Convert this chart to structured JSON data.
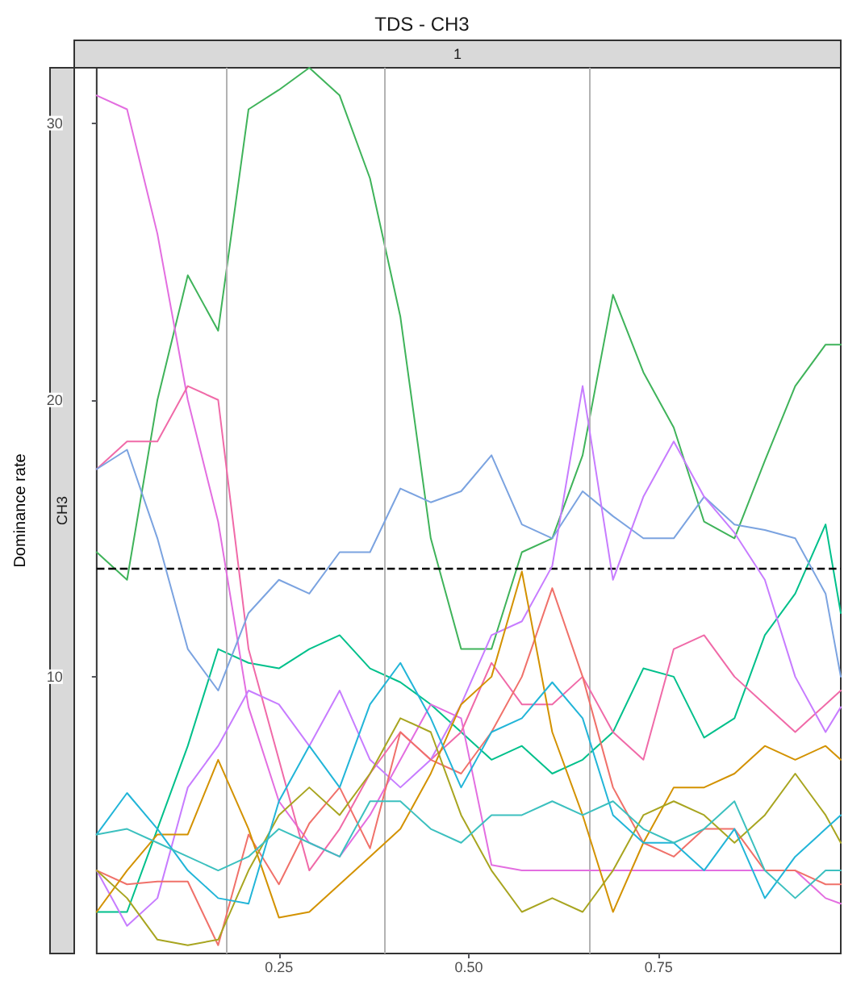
{
  "chart_data": {
    "type": "line",
    "title": "TDS - CH3",
    "ylabel": "Dominance rate",
    "annotations": [
      "1",
      "CH3"
    ],
    "x": [
      0.01,
      0.05,
      0.09,
      0.13,
      0.17,
      0.21,
      0.25,
      0.29,
      0.33,
      0.37,
      0.41,
      0.45,
      0.49,
      0.53,
      0.57,
      0.61,
      0.65,
      0.69,
      0.73,
      0.77,
      0.81,
      0.85,
      0.89,
      0.93,
      0.97,
      0.99
    ],
    "series": [
      {
        "color": "#3fb35a",
        "values": [
          14.5,
          13.5,
          20,
          24.5,
          22.5,
          30.5,
          31.2,
          32,
          31,
          28,
          23,
          15,
          11,
          11,
          14.5,
          15,
          18,
          23.8,
          21,
          19,
          15.6,
          15,
          17.8,
          20.5,
          22,
          22
        ]
      },
      {
        "color": "#00c08b",
        "values": [
          1.5,
          1.5,
          4.5,
          7.5,
          11,
          10.5,
          10.3,
          11,
          11.5,
          10.3,
          9.8,
          9,
          8,
          7,
          7.5,
          6.5,
          7,
          8,
          10.3,
          10,
          7.8,
          8.5,
          11.5,
          13,
          15.5,
          12.3
        ]
      },
      {
        "color": "#e36ee0",
        "values": [
          31,
          30.5,
          26,
          20,
          15.6,
          8.9,
          5.5,
          4,
          3.5,
          5,
          7,
          9,
          8.5,
          3.2,
          3,
          3,
          3,
          3,
          3,
          3,
          3,
          3,
          3,
          3,
          2,
          1.8
        ]
      },
      {
        "color": "#f06aa8",
        "values": [
          17.5,
          18.5,
          18.5,
          20.5,
          20,
          11,
          7,
          3,
          4.5,
          6.5,
          8,
          7,
          8,
          10.5,
          9,
          9,
          10,
          8,
          7,
          11,
          11.5,
          10,
          9,
          8,
          9,
          9.5
        ]
      },
      {
        "color": "#7ba3e0",
        "values": [
          17.5,
          18.2,
          15,
          11,
          9.5,
          12.3,
          13.5,
          13,
          14.5,
          14.5,
          16.8,
          16.3,
          16.7,
          18,
          15.5,
          15,
          16.7,
          15.8,
          15,
          15,
          16.5,
          15.5,
          15.3,
          15,
          13,
          10
        ]
      },
      {
        "color": "#c77cff",
        "values": [
          3,
          1,
          2,
          6,
          7.5,
          9.5,
          9,
          7.5,
          9.5,
          7,
          6,
          7,
          9,
          11.5,
          12,
          14,
          20.5,
          13.5,
          16.5,
          18.5,
          16.5,
          15.2,
          13.5,
          10,
          8,
          8.9
        ]
      },
      {
        "color": "#f0716a",
        "values": [
          3,
          2.5,
          2.6,
          2.6,
          0.3,
          4.3,
          2.5,
          4.7,
          6,
          3.8,
          8,
          7,
          6.5,
          8,
          10,
          13.2,
          10,
          6,
          4,
          3.5,
          4.5,
          4.5,
          3,
          3,
          2.5,
          2.5
        ]
      },
      {
        "color": "#d39200",
        "values": [
          1.5,
          3,
          4.3,
          4.3,
          7,
          4.5,
          1.3,
          1.5,
          2.5,
          3.5,
          4.5,
          6.5,
          9,
          10,
          13.8,
          8,
          5,
          1.5,
          4,
          6,
          6,
          6.5,
          7.5,
          7,
          7.5,
          7
        ]
      },
      {
        "color": "#a8a520",
        "values": [
          3,
          2,
          0.5,
          0.3,
          0.5,
          3,
          5,
          6,
          5,
          6.5,
          8.5,
          8,
          5,
          3,
          1.5,
          2,
          1.5,
          3,
          5,
          5.5,
          5,
          4,
          5,
          6.5,
          5,
          4
        ]
      },
      {
        "color": "#22b5d8",
        "values": [
          4.3,
          5.8,
          4.5,
          3,
          2,
          1.8,
          5.5,
          7.5,
          6,
          9,
          10.5,
          8.5,
          6,
          8,
          8.5,
          9.8,
          8.5,
          5,
          4,
          4,
          3,
          4.5,
          2,
          3.5,
          4.5,
          5
        ]
      },
      {
        "color": "#3cc0bf",
        "values": [
          4.3,
          4.5,
          4,
          3.5,
          3,
          3.5,
          4.5,
          4,
          3.5,
          5.5,
          5.5,
          4.5,
          4,
          5,
          5,
          5.5,
          5,
          5.5,
          4.5,
          4,
          4.5,
          5.5,
          3,
          2,
          3,
          3
        ]
      }
    ],
    "xlim": [
      0.01,
      0.99
    ],
    "xticks": [
      0.25,
      {
        "value": 0.5,
        "label": "0.50"
      },
      0.75
    ],
    "ylim": [
      0,
      32
    ],
    "yticks": [
      10,
      20,
      30
    ],
    "ref_lines": [
      {
        "axis": "x",
        "value": 0.178,
        "color": "#b3b3b3",
        "line_style": "solid"
      },
      {
        "axis": "x",
        "value": 0.388,
        "color": "#b3b3b3",
        "line_style": "solid"
      },
      {
        "axis": "x",
        "value": 0.661,
        "color": "#b3b3b3",
        "line_style": "solid"
      },
      {
        "axis": "y",
        "value": 13.9,
        "color": "#000000",
        "line_style": "dashed"
      }
    ],
    "grid": false,
    "marker": "none",
    "line_style": "solid"
  }
}
